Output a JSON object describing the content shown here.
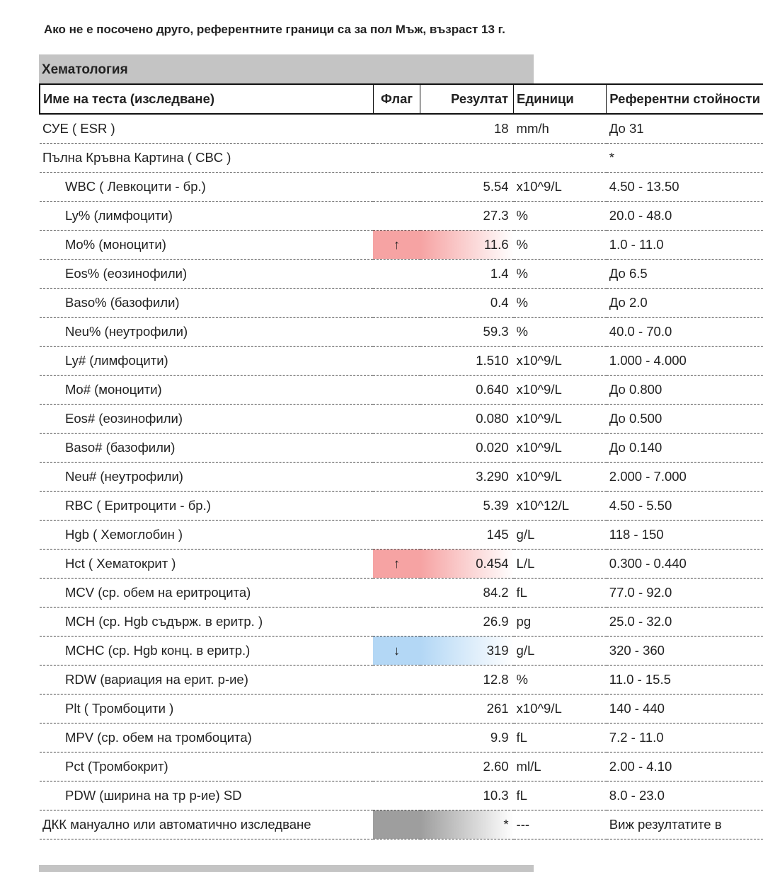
{
  "note": "Ако не е посочено друго, референтните граници са за пол Мъж, възраст 13 г.",
  "section": {
    "title": "Хематология",
    "columns": [
      "Име на теста (изследване)",
      "Флаг",
      "Резултат",
      "Единици",
      "Референтни стойности"
    ],
    "rows": [
      {
        "name": "СУЕ ( ESR )",
        "result": "18",
        "units": "mm/h",
        "reference": "До 31"
      },
      {
        "name": "Пълна Кръвна Картина ( CBC )",
        "reference": "*",
        "items": [
          {
            "name": "WBC ( Левкоцити - бр.)",
            "result": "5.54",
            "units": "x10^9/L",
            "reference": "4.50 - 13.50"
          },
          {
            "name": "Ly% (лимфоцити)",
            "result": "27.3",
            "units": "%",
            "reference": "20.0 - 48.0"
          },
          {
            "name": "Mo% (моноцити)",
            "flag": "↑",
            "highlight": "#f6a3a3",
            "result": "11.6",
            "units": "%",
            "reference": "1.0 - 11.0"
          },
          {
            "name": "Eos% (еозинофили)",
            "result": "1.4",
            "units": "%",
            "reference": "До 6.5"
          },
          {
            "name": "Baso% (базофили)",
            "result": "0.4",
            "units": "%",
            "reference": "До 2.0"
          },
          {
            "name": "Neu% (неутрофили)",
            "result": "59.3",
            "units": "%",
            "reference": "40.0 - 70.0"
          },
          {
            "name": "Ly# (лимфоцити)",
            "result": "1.510",
            "units": "x10^9/L",
            "reference": "1.000 - 4.000"
          },
          {
            "name": "Mo# (моноцити)",
            "result": "0.640",
            "units": "x10^9/L",
            "reference": "До 0.800"
          },
          {
            "name": "Eos# (еозинофили)",
            "result": "0.080",
            "units": "x10^9/L",
            "reference": "До 0.500"
          },
          {
            "name": "Baso# (базофили)",
            "result": "0.020",
            "units": "x10^9/L",
            "reference": "До 0.140"
          },
          {
            "name": "Neu# (неутрофили)",
            "result": "3.290",
            "units": "x10^9/L",
            "reference": "2.000 - 7.000"
          },
          {
            "name": "RBC ( Еритроцити - бр.)",
            "result": "5.39",
            "units": "x10^12/L",
            "reference": "4.50 - 5.50"
          },
          {
            "name": "Hgb ( Хемоглобин )",
            "result": "145",
            "units": "g/L",
            "reference": "118 - 150"
          },
          {
            "name": "Hct ( Хематокрит )",
            "flag": "↑",
            "highlight": "#f6a3a3",
            "result": "0.454",
            "units": "L/L",
            "reference": "0.300 - 0.440"
          },
          {
            "name": "MCV (ср. обем на еритроцита)",
            "result": "84.2",
            "units": "fL",
            "reference": "77.0 - 92.0"
          },
          {
            "name": "MCH (ср. Hgb съдърж. в еритр. )",
            "result": "26.9",
            "units": "pg",
            "reference": "25.0 - 32.0"
          },
          {
            "name": "MCHC (ср. Hgb конц. в еритр.)",
            "flag": "↓",
            "highlight": "#b3d7f5",
            "result": "319",
            "units": "g/L",
            "reference": "320 - 360"
          },
          {
            "name": "RDW (вариация на ерит. р-ие)",
            "result": "12.8",
            "units": "%",
            "reference": "11.0 - 15.5"
          },
          {
            "name": "Plt ( Тромбоцити )",
            "result": "261",
            "units": "x10^9/L",
            "reference": "140 - 440"
          },
          {
            "name": "MPV (ср. обем на тромбоцита)",
            "result": "9.9",
            "units": "fL",
            "reference": "7.2 - 11.0"
          },
          {
            "name": "Pct (Тромбокрит)",
            "result": "2.60",
            "units": "ml/L",
            "reference": "2.00 - 4.10"
          },
          {
            "name": "PDW (ширина на тр р-ие) SD",
            "result": "10.3",
            "units": "fL",
            "reference": "8.0 - 23.0"
          }
        ]
      },
      {
        "name": "ДКК мануално или автоматично изследване",
        "highlight": "#9e9e9e",
        "result": "*",
        "units": "---",
        "reference": "Виж резултатите в"
      }
    ]
  }
}
